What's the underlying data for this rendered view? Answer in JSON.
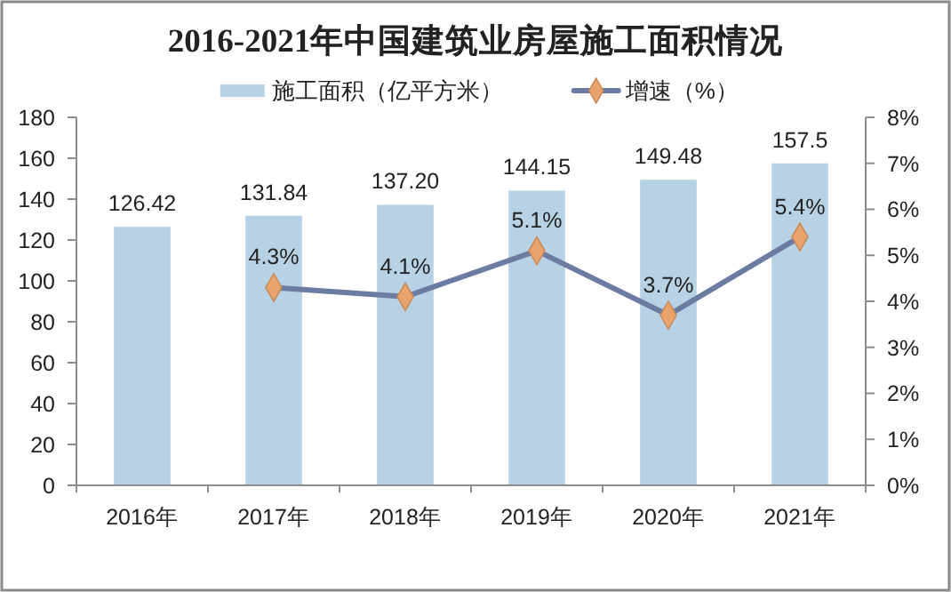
{
  "chart_data": {
    "type": "bar",
    "title": "2016-2021年中国建筑业房屋施工面积情况",
    "categories": [
      "2016年",
      "2017年",
      "2018年",
      "2019年",
      "2020年",
      "2021年"
    ],
    "series": [
      {
        "name": "施工面积（亿平方米）",
        "color": "#b7d2e5",
        "values": [
          126.42,
          131.84,
          137.2,
          144.15,
          149.48,
          157.5
        ],
        "value_labels": [
          "126.42",
          "131.84",
          "137.20",
          "144.15",
          "149.48",
          "157.5"
        ]
      },
      {
        "name": "增速（%）",
        "type": "line",
        "axis": "y2",
        "color": "#6b7ba1",
        "marker": "diamond",
        "values": [
          null,
          4.3,
          4.1,
          5.1,
          3.7,
          5.4
        ],
        "value_labels": [
          null,
          "4.3%",
          "4.1%",
          "5.1%",
          "3.7%",
          "5.4%"
        ]
      }
    ],
    "ylim": [
      0,
      180
    ],
    "yticks": [
      0,
      20,
      40,
      60,
      80,
      100,
      120,
      140,
      160,
      180
    ],
    "y2lim": [
      0,
      8
    ],
    "y2ticks": [
      {
        "value": 0,
        "label": "0%"
      },
      {
        "value": 1,
        "label": "1%"
      },
      {
        "value": 2,
        "label": "2%"
      },
      {
        "value": 3,
        "label": "3%"
      },
      {
        "value": 4,
        "label": "4%"
      },
      {
        "value": 5,
        "label": "5%"
      },
      {
        "value": 6,
        "label": "6%"
      },
      {
        "value": 7,
        "label": "7%"
      },
      {
        "value": 8,
        "label": "8%"
      }
    ],
    "legend": "top",
    "grid": false
  }
}
